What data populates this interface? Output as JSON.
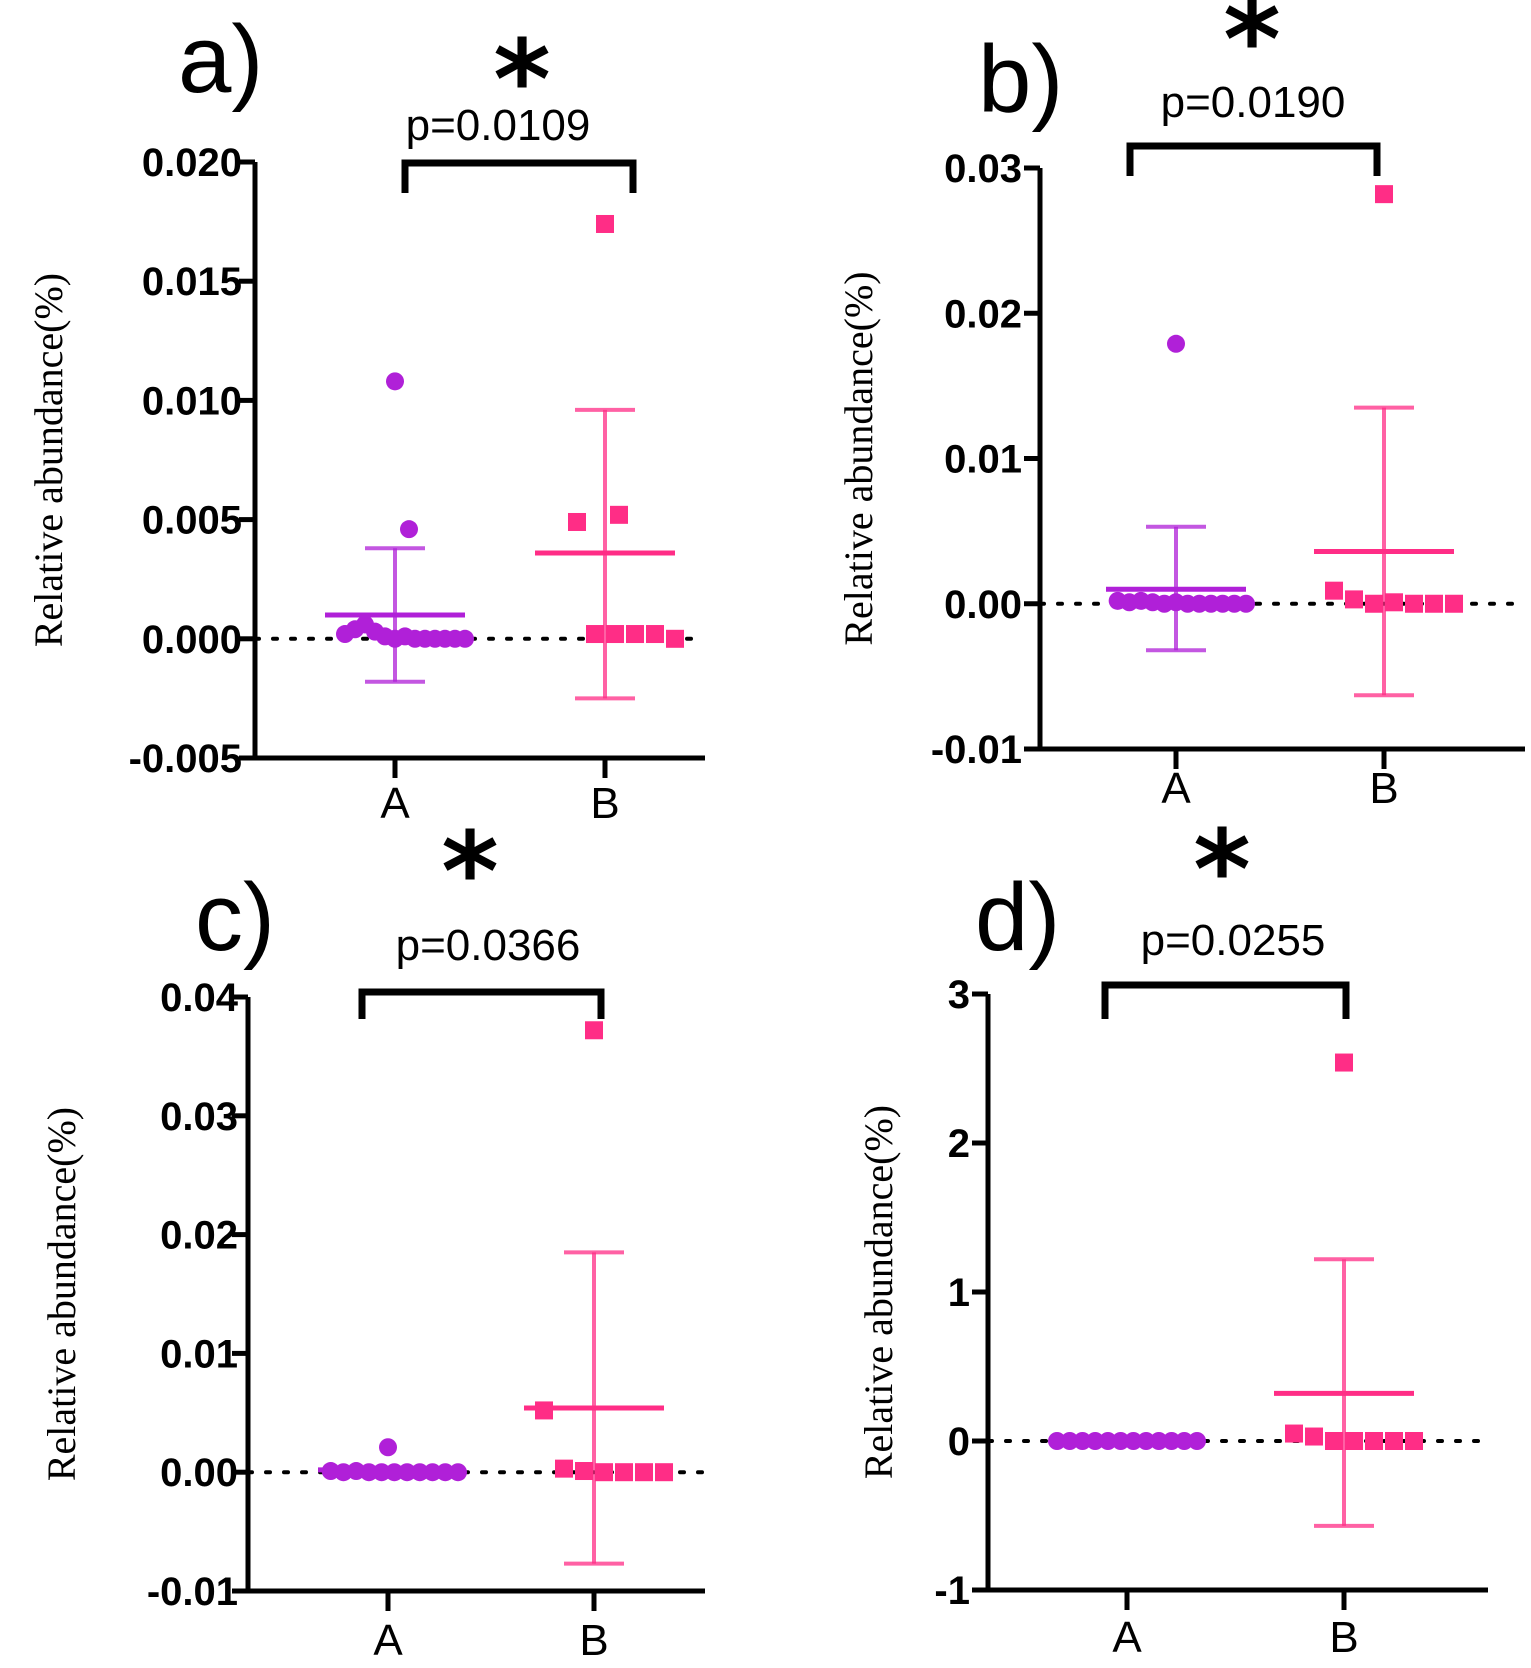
{
  "chart_data": [
    {
      "type": "scatter",
      "panel_label": "a)",
      "significance": "*",
      "p_value_text": "p=0.0109",
      "ylabel": "Relative abundance(%)",
      "categories": [
        "A",
        "B"
      ],
      "ylim": [
        -0.005,
        0.02
      ],
      "yticks": [
        -0.005,
        0.0,
        0.005,
        0.01,
        0.015,
        0.02
      ],
      "ytick_labels": [
        "-0.005",
        "0.000",
        "0.005",
        "0.010",
        "0.015",
        "0.020"
      ],
      "colors": {
        "A": "#b020d8",
        "B": "#ff2d86"
      },
      "series": [
        {
          "name": "A",
          "marker": "circle",
          "mean": 0.001,
          "error_low": -0.0018,
          "error_high": 0.0038,
          "values": [
            0.0108,
            0.0046,
            0.0002,
            0.0004,
            0.0006,
            0.0003,
            0.0001,
            0.0,
            0.0001,
            0.0,
            0.0,
            0.0,
            0.0,
            0.0,
            0.0
          ]
        },
        {
          "name": "B",
          "marker": "square",
          "mean": 0.0036,
          "error_low": -0.0025,
          "error_high": 0.0096,
          "values": [
            0.0174,
            0.0052,
            0.0049,
            0.0002,
            0.0002,
            0.0002,
            0.0002,
            0.0
          ]
        }
      ]
    },
    {
      "type": "scatter",
      "panel_label": "b)",
      "significance": "*",
      "p_value_text": "p=0.0190",
      "ylabel": "Relative abundance(%)",
      "categories": [
        "A",
        "B"
      ],
      "ylim": [
        -0.01,
        0.03
      ],
      "yticks": [
        -0.01,
        0.0,
        0.01,
        0.02,
        0.03
      ],
      "ytick_labels": [
        "-0.01",
        "0.00",
        "0.01",
        "0.02",
        "0.03"
      ],
      "colors": {
        "A": "#b020d8",
        "B": "#ff2d86"
      },
      "series": [
        {
          "name": "A",
          "marker": "circle",
          "mean": 0.001,
          "error_low": -0.0032,
          "error_high": 0.0053,
          "values": [
            0.0179,
            0.0002,
            0.0001,
            0.0002,
            0.0001,
            0.0,
            0.0001,
            0.0,
            0.0,
            0.0,
            0.0,
            0.0,
            0.0
          ]
        },
        {
          "name": "B",
          "marker": "square",
          "mean": 0.0036,
          "error_low": -0.0063,
          "error_high": 0.0135,
          "values": [
            0.0282,
            0.0009,
            0.0003,
            0.0,
            0.0001,
            0.0,
            0.0,
            0.0
          ]
        }
      ]
    },
    {
      "type": "scatter",
      "panel_label": "c)",
      "significance": "*",
      "p_value_text": "p=0.0366",
      "ylabel": "Relative abundance(%)",
      "categories": [
        "A",
        "B"
      ],
      "ylim": [
        -0.01,
        0.04
      ],
      "yticks": [
        -0.01,
        0.0,
        0.01,
        0.02,
        0.03,
        0.04
      ],
      "ytick_labels": [
        "-0.01",
        "0.00",
        "0.01",
        "0.02",
        "0.03",
        "0.04"
      ],
      "colors": {
        "A": "#b020d8",
        "B": "#ff2d86"
      },
      "series": [
        {
          "name": "A",
          "marker": "circle",
          "mean": 0.0002,
          "error_low": 0.0,
          "error_high": 0.0004,
          "values": [
            0.0021,
            0.0001,
            0.0,
            0.0001,
            0.0,
            0.0,
            0.0,
            0.0,
            0.0,
            0.0,
            0.0,
            0.0
          ]
        },
        {
          "name": "B",
          "marker": "square",
          "mean": 0.0054,
          "error_low": -0.0077,
          "error_high": 0.0185,
          "values": [
            0.0372,
            0.0052,
            0.0003,
            0.0001,
            0.0,
            0.0,
            0.0,
            0.0
          ]
        }
      ]
    },
    {
      "type": "scatter",
      "panel_label": "d)",
      "significance": "*",
      "p_value_text": "p=0.0255",
      "ylabel": "Relative abundance(%)",
      "categories": [
        "A",
        "B"
      ],
      "ylim": [
        -1,
        3
      ],
      "yticks": [
        -1,
        0,
        1,
        2,
        3
      ],
      "ytick_labels": [
        "-1",
        "0",
        "1",
        "2",
        "3"
      ],
      "colors": {
        "A": "#b020d8",
        "B": "#ff2d86"
      },
      "series": [
        {
          "name": "A",
          "marker": "circle",
          "mean": 0.0,
          "error_low": 0.0,
          "error_high": 0.0,
          "values": [
            0.0,
            0.0,
            0.0,
            0.0,
            0.0,
            0.0,
            0.0,
            0.0,
            0.0,
            0.0,
            0.0,
            0.0
          ]
        },
        {
          "name": "B",
          "marker": "square",
          "mean": 0.32,
          "error_low": -0.57,
          "error_high": 1.22,
          "values": [
            2.54,
            0.05,
            0.03,
            0.0,
            0.0,
            0.0,
            0.0,
            0.0
          ]
        }
      ]
    }
  ]
}
